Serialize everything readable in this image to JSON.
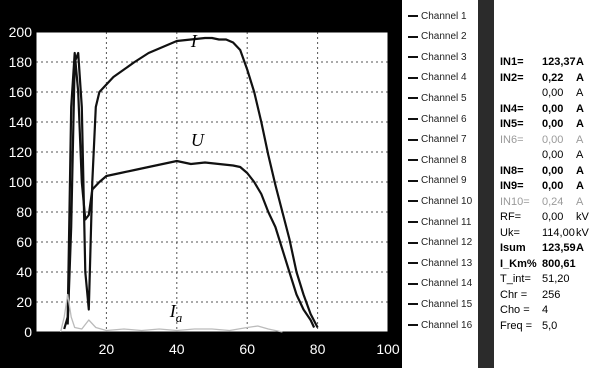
{
  "chart_data": {
    "type": "line",
    "xlim": [
      0,
      100
    ],
    "ylim": [
      0,
      200
    ],
    "x_ticks": [
      "20",
      "40",
      "60",
      "80",
      "100"
    ],
    "y_ticks": [
      "0",
      "20",
      "40",
      "60",
      "80",
      "100",
      "120",
      "140",
      "160",
      "180",
      "200"
    ],
    "grid": "dotted",
    "colors": {
      "background": "#000000",
      "grid": "#ffffff",
      "I": "#111111",
      "U": "#111111",
      "Ia": "#bbbbbb"
    },
    "series": [
      {
        "name": "I",
        "points": [
          [
            9,
            5
          ],
          [
            10,
            70
          ],
          [
            11,
            180
          ],
          [
            12,
            186
          ],
          [
            13,
            150
          ],
          [
            14,
            40
          ],
          [
            15,
            15
          ],
          [
            16,
            100
          ],
          [
            17,
            150
          ],
          [
            18,
            160
          ],
          [
            20,
            165
          ],
          [
            22,
            170
          ],
          [
            25,
            175
          ],
          [
            28,
            180
          ],
          [
            32,
            186
          ],
          [
            36,
            190
          ],
          [
            40,
            194
          ],
          [
            44,
            195
          ],
          [
            48,
            196
          ],
          [
            50,
            196
          ],
          [
            52,
            195
          ],
          [
            54,
            195
          ],
          [
            56,
            193
          ],
          [
            58,
            188
          ],
          [
            60,
            175
          ],
          [
            62,
            160
          ],
          [
            64,
            140
          ],
          [
            66,
            118
          ],
          [
            68,
            98
          ],
          [
            70,
            80
          ],
          [
            72,
            62
          ],
          [
            74,
            40
          ],
          [
            76,
            25
          ],
          [
            78,
            12
          ],
          [
            80,
            3
          ]
        ]
      },
      {
        "name": "U",
        "points": [
          [
            8,
            2
          ],
          [
            9,
            10
          ],
          [
            10,
            150
          ],
          [
            11,
            186
          ],
          [
            12,
            160
          ],
          [
            13,
            100
          ],
          [
            14,
            75
          ],
          [
            15,
            78
          ],
          [
            16,
            95
          ],
          [
            18,
            100
          ],
          [
            20,
            104
          ],
          [
            24,
            106
          ],
          [
            28,
            108
          ],
          [
            32,
            110
          ],
          [
            36,
            112
          ],
          [
            40,
            114
          ],
          [
            44,
            112
          ],
          [
            48,
            113
          ],
          [
            52,
            112
          ],
          [
            56,
            111
          ],
          [
            58,
            110
          ],
          [
            60,
            106
          ],
          [
            62,
            100
          ],
          [
            64,
            92
          ],
          [
            66,
            80
          ],
          [
            68,
            70
          ],
          [
            70,
            55
          ],
          [
            72,
            40
          ],
          [
            74,
            25
          ],
          [
            76,
            15
          ],
          [
            78,
            8
          ],
          [
            79,
            3
          ]
        ]
      },
      {
        "name": "I_a",
        "points": [
          [
            7,
            0
          ],
          [
            8,
            10
          ],
          [
            9,
            25
          ],
          [
            10,
            10
          ],
          [
            11,
            3
          ],
          [
            13,
            2
          ],
          [
            15,
            8
          ],
          [
            17,
            3
          ],
          [
            20,
            1
          ],
          [
            25,
            2
          ],
          [
            30,
            1
          ],
          [
            35,
            2
          ],
          [
            40,
            1
          ],
          [
            45,
            2
          ],
          [
            50,
            2
          ],
          [
            55,
            1
          ],
          [
            60,
            3
          ],
          [
            63,
            4
          ],
          [
            66,
            2
          ],
          [
            70,
            0
          ]
        ]
      }
    ],
    "annotations": [
      {
        "text": "I",
        "x": 44,
        "y": 190
      },
      {
        "text": "U",
        "x": 44,
        "y": 124
      },
      {
        "text": "I",
        "subscript": "a",
        "x": 38,
        "y": 10
      }
    ],
    "legend": [
      "Channel 1",
      "Channel 2",
      "Channel 3",
      "Channel 4",
      "Channel 5",
      "Channel 6",
      "Channel 7",
      "Channel 8",
      "Channel 9",
      "Channel 10",
      "Channel 11",
      "Channel 12",
      "Channel 13",
      "Channel 14",
      "Channel 15",
      "Channel 16"
    ],
    "legend_placement": "right"
  },
  "readouts": [
    {
      "label": "IN1=",
      "value": "123,37",
      "unit": "A",
      "style": "bold"
    },
    {
      "label": "IN2=",
      "value": "0,22",
      "unit": "A",
      "style": "bold"
    },
    {
      "label": "",
      "value": "0,00",
      "unit": "A",
      "style": "normal"
    },
    {
      "label": "IN4=",
      "value": "0,00",
      "unit": "A",
      "style": "bold"
    },
    {
      "label": "IN5=",
      "value": "0,00",
      "unit": "A",
      "style": "bold"
    },
    {
      "label": "IN6=",
      "value": "0,00",
      "unit": "A",
      "style": "dim"
    },
    {
      "label": "",
      "value": "0,00",
      "unit": "A",
      "style": "normal"
    },
    {
      "label": "IN8=",
      "value": "0,00",
      "unit": "A",
      "style": "bold"
    },
    {
      "label": "IN9=",
      "value": "0,00",
      "unit": "A",
      "style": "bold"
    },
    {
      "label": "IN10=",
      "value": "0,24",
      "unit": "A",
      "style": "dim"
    },
    {
      "label": "RF=",
      "value": "0,00",
      "unit": "kV",
      "style": "normal"
    },
    {
      "label": "Uk=",
      "value": "114,00",
      "unit": "kV",
      "style": "normal"
    },
    {
      "label": "Isum",
      "value": "123,59",
      "unit": "A",
      "style": "bold"
    },
    {
      "label": "I_Km%",
      "value": "800,61",
      "unit": "",
      "style": "bold"
    },
    {
      "label": "T_int=",
      "value": "51,20",
      "unit": "",
      "style": "normal"
    },
    {
      "label": "Chr =",
      "value": "256",
      "unit": "",
      "style": "normal"
    },
    {
      "label": "Cho =",
      "value": "4",
      "unit": "",
      "style": "normal"
    },
    {
      "label": "Freq =",
      "value": "5,0",
      "unit": "",
      "style": "normal"
    }
  ]
}
